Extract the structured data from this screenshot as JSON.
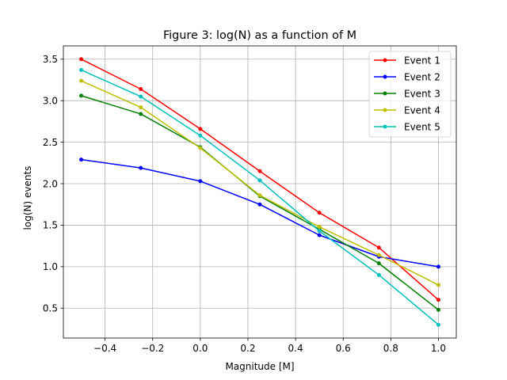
{
  "chart_data": {
    "type": "line",
    "title": "Figure 3: log(N) as a function of M",
    "xlabel": "Magnitude [M]",
    "ylabel": "log(N) events",
    "x": [
      -0.5,
      -0.25,
      0.0,
      0.25,
      0.5,
      0.75,
      1.0
    ],
    "xlim": [
      -0.575,
      1.075
    ],
    "ylim": [
      0.14,
      3.66
    ],
    "xticks": [
      -0.4,
      -0.2,
      0.0,
      0.2,
      0.4,
      0.6,
      0.8,
      1.0
    ],
    "xtick_labels": [
      "−0.4",
      "−0.2",
      "0.0",
      "0.2",
      "0.4",
      "0.6",
      "0.8",
      "1.0"
    ],
    "yticks": [
      0.5,
      1.0,
      1.5,
      2.0,
      2.5,
      3.0,
      3.5
    ],
    "ytick_labels": [
      "0.5",
      "1.0",
      "1.5",
      "2.0",
      "2.5",
      "3.0",
      "3.5"
    ],
    "grid": true,
    "legend_position": "top-right",
    "series": [
      {
        "name": "Event 1",
        "color": "#ff0000",
        "values": [
          3.5,
          3.14,
          2.66,
          2.15,
          1.65,
          1.23,
          0.6
        ]
      },
      {
        "name": "Event 2",
        "color": "#0000ff",
        "values": [
          2.29,
          2.19,
          2.03,
          1.75,
          1.38,
          1.12,
          1.0
        ]
      },
      {
        "name": "Event 3",
        "color": "#008000",
        "values": [
          3.06,
          2.84,
          2.44,
          1.85,
          1.45,
          1.04,
          0.48
        ]
      },
      {
        "name": "Event 4",
        "color": "#bfbf00",
        "values": [
          3.24,
          2.92,
          2.43,
          1.86,
          1.48,
          1.14,
          0.78
        ]
      },
      {
        "name": "Event 5",
        "color": "#00bfbf",
        "values": [
          3.37,
          3.05,
          2.58,
          2.04,
          1.43,
          0.9,
          0.3
        ]
      }
    ]
  }
}
